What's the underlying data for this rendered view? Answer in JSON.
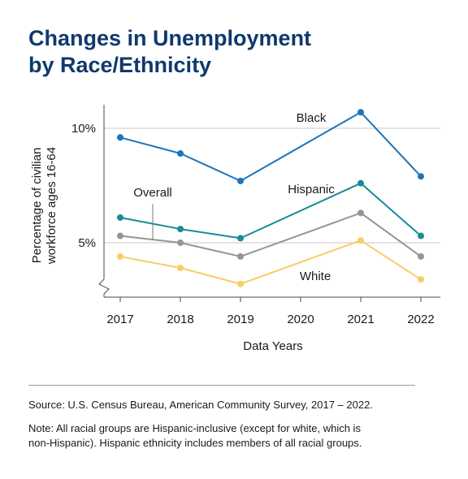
{
  "title": {
    "line1": "Changes in Unemployment",
    "line2": "by Race/Ethnicity"
  },
  "footer": {
    "source": "Source: U.S. Census Bureau, American Community Survey, 2017 – 2022.",
    "note_line1": "Note: All racial groups are Hispanic-inclusive (except for white, which is",
    "note_line2": "non-Hispanic). Hispanic ethnicity includes members of all racial groups."
  },
  "chart_data": {
    "type": "line",
    "xlabel": "Data Years",
    "ylabel_line1": "Percentage of civilian",
    "ylabel_line2": "workforce ages 16-64",
    "x": [
      "2017",
      "2018",
      "2019",
      "2020",
      "2021",
      "2022"
    ],
    "y_ticks": [
      {
        "value": 5,
        "label": "5%"
      },
      {
        "value": 10,
        "label": "10%"
      }
    ],
    "ylim": [
      2.6,
      11.0
    ],
    "axis_break": true,
    "grid": "horizontal at y ticks",
    "series": [
      {
        "name": "Black",
        "color": "#1b75bc",
        "values": [
          9.6,
          8.9,
          7.7,
          null,
          10.7,
          7.9
        ]
      },
      {
        "name": "Hispanic",
        "color": "#168c96",
        "values": [
          6.1,
          5.6,
          5.2,
          null,
          7.6,
          5.3
        ]
      },
      {
        "name": "Overall",
        "color": "#959595",
        "values": [
          5.3,
          5.0,
          4.4,
          null,
          6.3,
          4.4
        ]
      },
      {
        "name": "White",
        "color": "#f8cd63",
        "values": [
          4.4,
          3.9,
          3.2,
          null,
          5.1,
          3.4
        ]
      }
    ]
  }
}
